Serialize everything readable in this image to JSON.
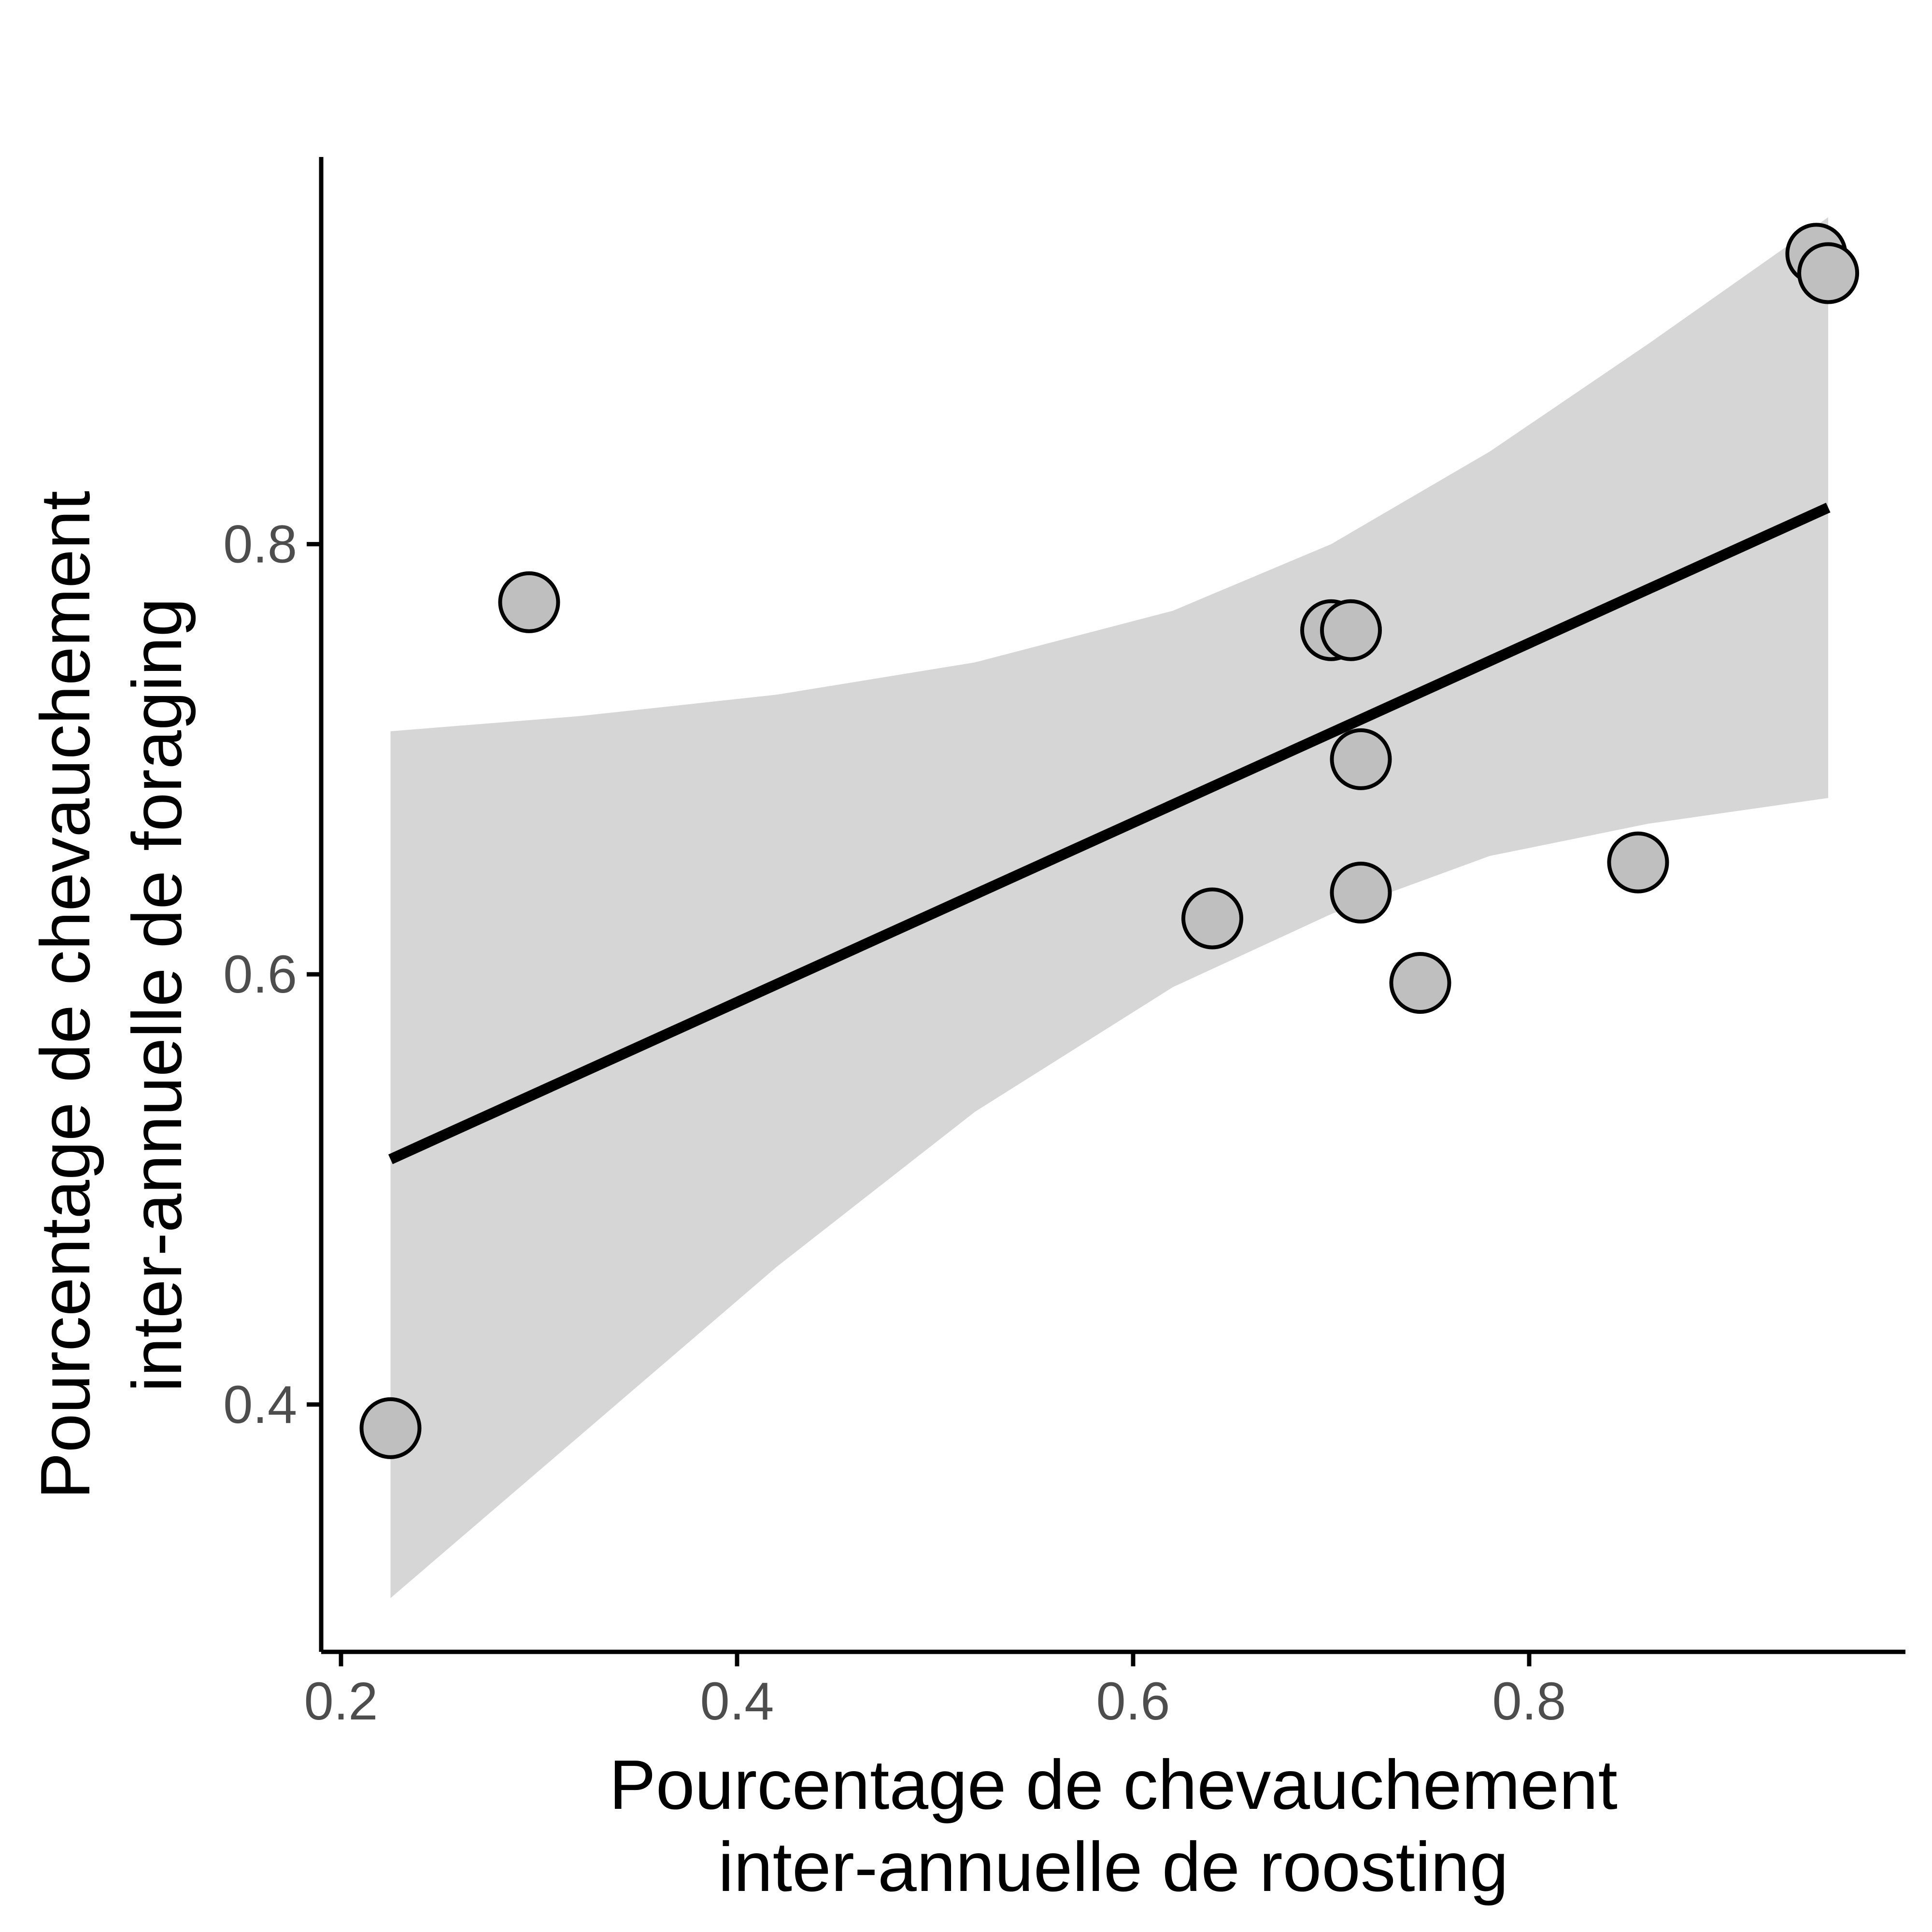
{
  "chart_data": {
    "type": "scatter",
    "xlabel_lines": [
      "Pourcentage de chevauchement",
      "inter-annuelle de roosting"
    ],
    "ylabel_lines": [
      "Pourcentage de chevauchement",
      "inter-annuelle de foraging"
    ],
    "xlim": [
      0.19,
      0.99
    ],
    "ylim": [
      0.285,
      0.98
    ],
    "x_ticks": [
      0.2,
      0.4,
      0.6,
      0.8
    ],
    "y_ticks": [
      0.4,
      0.6,
      0.8
    ],
    "x_tick_labels": [
      "0.2",
      "0.4",
      "0.6",
      "0.8"
    ],
    "y_tick_labels": [
      "0.4",
      "0.6",
      "0.8"
    ],
    "grid": false,
    "points": [
      {
        "x": 0.225,
        "y": 0.389
      },
      {
        "x": 0.295,
        "y": 0.773
      },
      {
        "x": 0.64,
        "y": 0.626
      },
      {
        "x": 0.7,
        "y": 0.76
      },
      {
        "x": 0.71,
        "y": 0.76
      },
      {
        "x": 0.715,
        "y": 0.7
      },
      {
        "x": 0.715,
        "y": 0.638
      },
      {
        "x": 0.745,
        "y": 0.596
      },
      {
        "x": 0.855,
        "y": 0.652
      },
      {
        "x": 0.945,
        "y": 0.935
      },
      {
        "x": 0.951,
        "y": 0.926
      }
    ],
    "fit_line": {
      "x": [
        0.225,
        0.951
      ],
      "y": [
        0.514,
        0.817
      ]
    },
    "confidence_band": {
      "x": [
        0.225,
        0.32,
        0.42,
        0.52,
        0.62,
        0.7,
        0.78,
        0.86,
        0.951
      ],
      "upper": [
        0.713,
        0.72,
        0.73,
        0.745,
        0.769,
        0.8,
        0.843,
        0.893,
        0.952
      ],
      "lower": [
        0.31,
        0.385,
        0.464,
        0.536,
        0.594,
        0.628,
        0.655,
        0.67,
        0.682
      ]
    },
    "colors": {
      "point_fill": "#bfbfbf",
      "point_stroke": "#000000",
      "line": "#000000",
      "band": "#d6d6d6",
      "axis": "#000000",
      "tick_label": "#4d4d4d"
    }
  }
}
